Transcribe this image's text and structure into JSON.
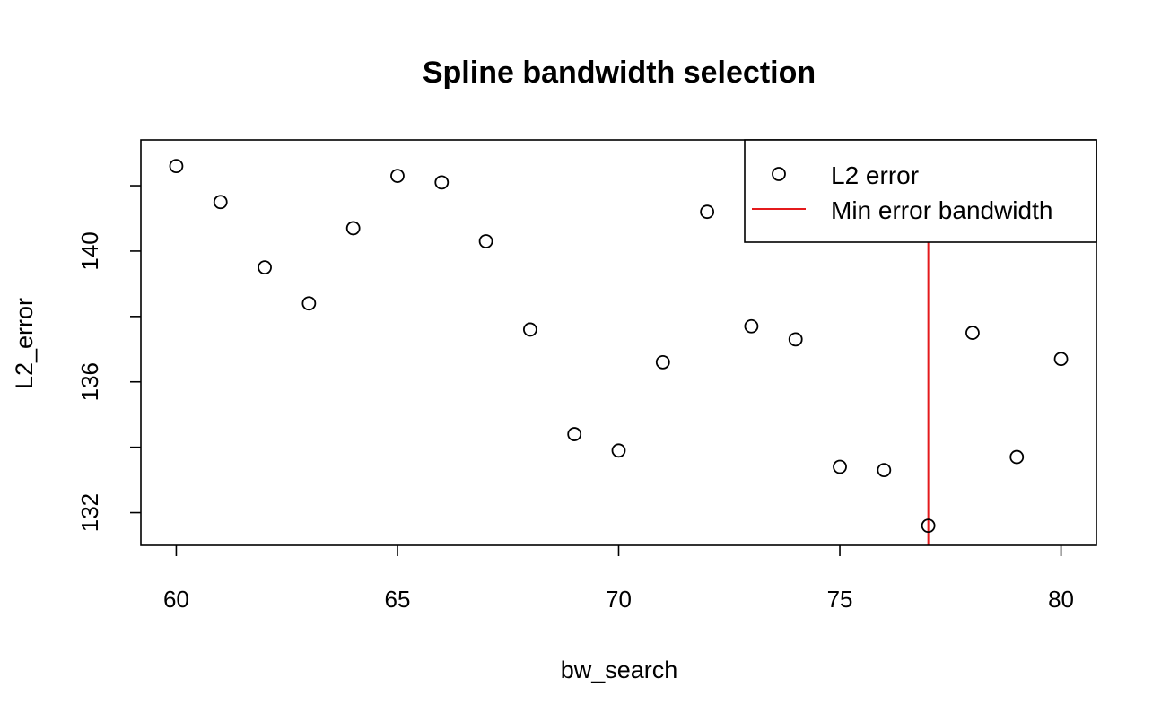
{
  "chart_data": {
    "type": "scatter",
    "title": "Spline bandwidth selection",
    "xlabel": "bw_search",
    "ylabel": "L2_error",
    "xlim": [
      59.2,
      80.8
    ],
    "ylim": [
      131.0,
      143.4
    ],
    "x_ticks": [
      60,
      65,
      70,
      75,
      80
    ],
    "y_ticks": [
      132,
      136,
      140
    ],
    "y_minor_ticks": [
      134,
      138,
      142
    ],
    "grid": false,
    "legend_position": "top-right",
    "series": [
      {
        "name": "L2 error",
        "marker": "open-circle",
        "color": "#000000",
        "x": [
          60,
          61,
          62,
          63,
          64,
          65,
          66,
          67,
          68,
          69,
          70,
          71,
          72,
          73,
          74,
          75,
          76,
          77,
          78,
          79,
          80
        ],
        "y": [
          142.6,
          141.5,
          139.5,
          138.4,
          140.7,
          142.3,
          142.1,
          140.3,
          137.6,
          134.4,
          133.9,
          136.6,
          141.2,
          137.7,
          137.3,
          133.4,
          133.3,
          131.6,
          137.5,
          133.7,
          136.7
        ]
      },
      {
        "name": "Min error bandwidth",
        "marker": "vertical-line",
        "color": "#e41a1c",
        "x_value": 77
      }
    ]
  }
}
